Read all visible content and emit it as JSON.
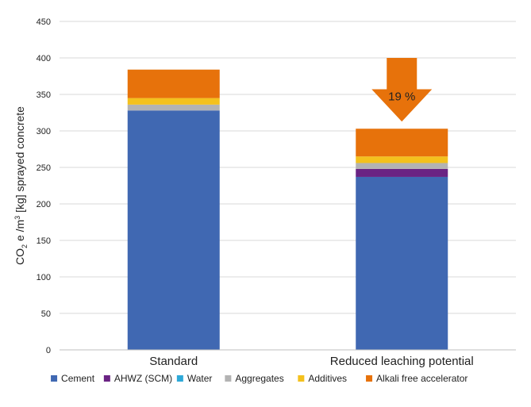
{
  "chart_data": {
    "type": "bar",
    "stacked": true,
    "categories": [
      "Standard",
      "Reduced leaching potential"
    ],
    "series": [
      {
        "name": "Cement",
        "color": "#4068B2",
        "values": [
          328,
          237
        ]
      },
      {
        "name": "AHWZ (SCM)",
        "color": "#6A2383",
        "values": [
          0,
          11
        ]
      },
      {
        "name": "Water",
        "color": "#2EA9D8",
        "values": [
          0,
          0
        ]
      },
      {
        "name": "Aggregates",
        "color": "#B3B3B3",
        "values": [
          8,
          8
        ]
      },
      {
        "name": "Additives",
        "color": "#F4C11D",
        "values": [
          9,
          9
        ]
      },
      {
        "name": "Alkali free accelerator",
        "color": "#E7720B",
        "values": [
          39,
          38
        ]
      }
    ],
    "ylabel_main": "CO",
    "ylabel_sub": "2",
    "ylabel_rest": " e /m",
    "ylabel_sup": "3",
    "ylabel_end": "  [kg] sprayed concrete",
    "ylim": [
      0,
      450
    ],
    "yticks": [
      0,
      50,
      100,
      150,
      200,
      250,
      300,
      350,
      400,
      450
    ],
    "grid": true,
    "legend_position": "bottom",
    "annotation": {
      "text": "19 %",
      "color": "#E7720B",
      "category": "Reduced leaching potential"
    }
  }
}
